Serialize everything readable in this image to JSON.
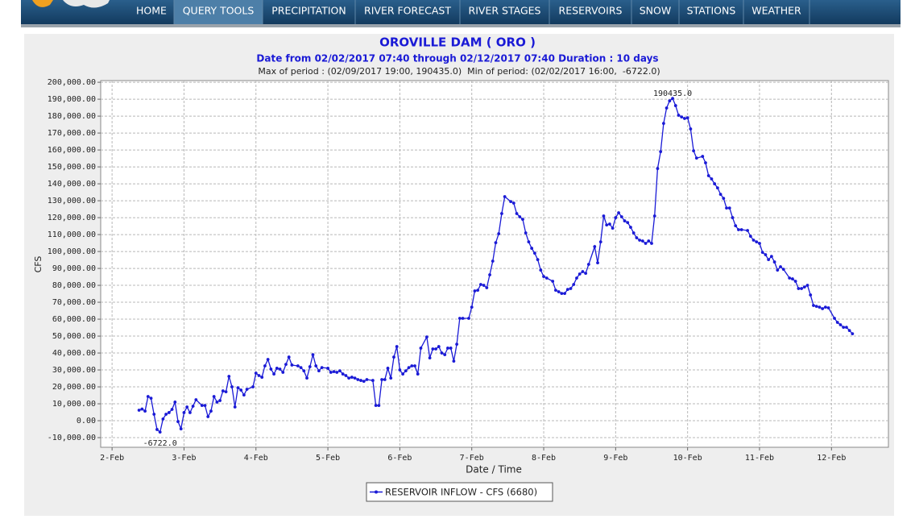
{
  "nav": {
    "items": [
      "HOME",
      "QUERY TOOLS",
      "PRECIPITATION",
      "RIVER FORECAST",
      "RIVER STAGES",
      "RESERVOIRS",
      "SNOW",
      "STATIONS",
      "WEATHER"
    ],
    "active": "QUERY TOOLS"
  },
  "chart_data": {
    "type": "line",
    "title": "OROVILLE DAM ( ORO )",
    "subtitle": "Date from 02/02/2017 07:40 through 02/12/2017 07:40 Duration : 10 days",
    "stats_line": "Max of period : (02/09/2017 19:00, 190435.0)  Min of period: (02/02/2017 16:00,  -6722.0)",
    "x_label": "Date / Time",
    "y_label": "CFS",
    "grid": true,
    "legend": "bottom",
    "xlim": [
      -3.8,
      259
    ],
    "ylim": [
      -15700,
      201000
    ],
    "xticks": [
      {
        "value": 0,
        "label": "2-Feb"
      },
      {
        "value": 24,
        "label": "3-Feb"
      },
      {
        "value": 48,
        "label": "4-Feb"
      },
      {
        "value": 72,
        "label": "5-Feb"
      },
      {
        "value": 96,
        "label": "6-Feb"
      },
      {
        "value": 120,
        "label": "7-Feb"
      },
      {
        "value": 144,
        "label": "8-Feb"
      },
      {
        "value": 168,
        "label": "9-Feb"
      },
      {
        "value": 192,
        "label": "10-Feb"
      },
      {
        "value": 216,
        "label": "11-Feb"
      },
      {
        "value": 240,
        "label": "12-Feb"
      }
    ],
    "yticks": [
      {
        "value": -10000,
        "label": "-10,000.00"
      },
      {
        "value": 0,
        "label": "0.00"
      },
      {
        "value": 10000,
        "label": "10,000.00"
      },
      {
        "value": 20000,
        "label": "20,000.00"
      },
      {
        "value": 30000,
        "label": "30,000.00"
      },
      {
        "value": 40000,
        "label": "40,000.00"
      },
      {
        "value": 50000,
        "label": "50,000.00"
      },
      {
        "value": 60000,
        "label": "60,000.00"
      },
      {
        "value": 70000,
        "label": "70,000.00"
      },
      {
        "value": 80000,
        "label": "80,000.00"
      },
      {
        "value": 90000,
        "label": "90,000.00"
      },
      {
        "value": 100000,
        "label": "100,000.00"
      },
      {
        "value": 110000,
        "label": "110,000.00"
      },
      {
        "value": 120000,
        "label": "120,000.00"
      },
      {
        "value": 130000,
        "label": "130,000.00"
      },
      {
        "value": 140000,
        "label": "140,000.00"
      },
      {
        "value": 150000,
        "label": "150,000.00"
      },
      {
        "value": 160000,
        "label": "160,000.00"
      },
      {
        "value": 170000,
        "label": "170,000.00"
      },
      {
        "value": 180000,
        "label": "180,000.00"
      },
      {
        "value": 190000,
        "label": "190,000.00"
      },
      {
        "value": 200000,
        "label": "200,000.00"
      }
    ],
    "x": [
      9,
      10,
      11,
      12,
      13,
      14,
      15,
      16,
      17,
      18,
      19,
      20,
      21,
      22,
      23,
      24,
      25,
      26,
      27,
      28,
      30,
      31,
      32,
      33,
      34,
      35,
      36,
      37,
      38,
      39,
      40,
      41,
      42,
      43,
      44,
      45,
      47,
      48,
      49,
      50,
      51,
      52,
      53,
      54,
      55,
      56,
      57,
      58,
      59,
      60,
      62,
      63,
      64,
      65,
      66,
      67,
      68,
      69,
      70,
      72,
      73,
      74,
      75,
      76,
      77,
      78,
      79,
      80,
      81,
      82,
      83,
      84,
      85,
      87,
      88,
      89,
      90,
      91,
      92,
      93,
      94,
      95,
      96,
      97,
      98,
      99,
      100,
      101,
      102,
      103,
      105,
      106,
      107,
      108,
      109,
      110,
      111,
      112,
      113,
      114,
      115,
      116,
      117,
      119,
      120,
      121,
      122,
      123,
      124,
      125,
      126,
      127,
      128,
      129,
      130,
      131,
      133,
      134,
      135,
      136,
      137,
      138,
      139,
      140,
      141,
      142,
      143,
      144,
      145,
      147,
      148,
      149,
      150,
      151,
      152,
      153,
      154,
      155,
      156,
      157,
      158,
      159,
      161,
      162,
      163,
      164,
      165,
      166,
      167,
      168,
      169,
      170,
      171,
      172,
      173,
      174,
      175,
      176,
      177,
      178,
      179,
      180,
      181,
      182,
      183,
      184,
      185,
      186,
      187,
      188,
      189,
      190,
      191,
      192,
      193,
      194,
      195,
      197,
      198,
      199,
      200,
      201,
      202,
      203,
      204,
      205,
      206,
      207,
      208,
      209,
      210,
      212,
      213,
      214,
      215,
      216,
      217,
      218,
      219,
      220,
      221,
      222,
      223,
      224,
      226,
      227,
      228,
      229,
      230,
      231,
      232,
      233,
      234,
      235,
      236,
      237,
      238,
      239,
      241,
      242,
      243,
      244,
      245,
      246,
      247
    ],
    "series": [
      {
        "name": "RESERVOIR INFLOW - CFS (6680)",
        "color": "#1a1ad6",
        "values": [
          6200,
          6900,
          5700,
          14300,
          13300,
          3800,
          -5200,
          -6722,
          1000,
          3800,
          4800,
          6700,
          11000,
          -500,
          -4800,
          4800,
          8100,
          4800,
          8600,
          12400,
          9000,
          9000,
          2400,
          5700,
          14300,
          11000,
          11900,
          17600,
          17100,
          26200,
          20000,
          8100,
          19500,
          18100,
          15200,
          18600,
          20000,
          28100,
          26700,
          25700,
          32400,
          36200,
          30500,
          27600,
          31000,
          30500,
          28600,
          33300,
          37600,
          32900,
          32400,
          31400,
          29500,
          25200,
          31900,
          39000,
          32400,
          29500,
          31400,
          31000,
          28600,
          29000,
          28600,
          29500,
          27600,
          26700,
          25200,
          25700,
          25200,
          24300,
          23800,
          23300,
          24300,
          23800,
          9000,
          9000,
          24300,
          24300,
          31000,
          25200,
          37600,
          43800,
          30000,
          27600,
          29500,
          31400,
          32400,
          32400,
          27600,
          42900,
          49500,
          37100,
          42400,
          42400,
          43800,
          40000,
          39000,
          42900,
          42900,
          35200,
          45200,
          60500,
          60500,
          60500,
          67100,
          76700,
          77100,
          80500,
          80000,
          78600,
          86200,
          94300,
          105200,
          110500,
          122400,
          132400,
          129500,
          128600,
          122400,
          120500,
          119000,
          111000,
          105700,
          101900,
          99000,
          95200,
          89000,
          85200,
          84300,
          82400,
          77100,
          76200,
          75200,
          75200,
          77600,
          78100,
          80500,
          84300,
          86700,
          88100,
          87100,
          92400,
          102900,
          93300,
          105700,
          121000,
          115700,
          116200,
          113800,
          120000,
          122900,
          120500,
          118100,
          117100,
          114300,
          111000,
          108100,
          106700,
          106200,
          104800,
          106200,
          104800,
          121000,
          149000,
          159000,
          175700,
          184800,
          189000,
          190435,
          186200,
          180500,
          179500,
          178600,
          179000,
          172400,
          159500,
          155200,
          156200,
          152400,
          144800,
          142900,
          140000,
          137600,
          133800,
          131400,
          125700,
          125700,
          120000,
          115200,
          112900,
          112900,
          112400,
          109000,
          106700,
          105700,
          104800,
          99500,
          98100,
          95200,
          97100,
          93800,
          89000,
          91000,
          89500,
          84300,
          83800,
          82400,
          78100,
          78100,
          79000,
          80000,
          74300,
          68100,
          67600,
          67100,
          66200,
          67100,
          66700,
          60500,
          58100,
          56700,
          55200,
          55200,
          53300,
          51400
        ]
      }
    ],
    "annotations": [
      {
        "label": "190435.0",
        "x": 187,
        "y": 190435
      },
      {
        "label": "-6722.0",
        "x": 16,
        "y": -6722
      }
    ]
  }
}
